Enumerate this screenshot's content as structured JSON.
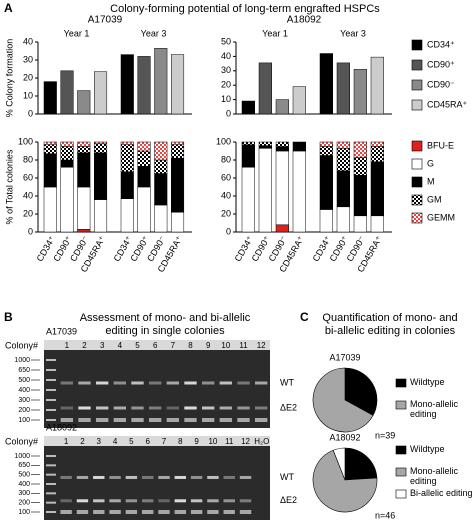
{
  "panel_a": {
    "label": "A",
    "title": "Colony-forming potential of long-term engrafted HSPCs"
  },
  "panel_b": {
    "label": "B",
    "title": [
      "Assessment of mono- and bi-allelic",
      "editing in single colonies"
    ],
    "row_label": "Colony#",
    "gels": [
      {
        "donor": "A17039",
        "lanes": [
          "1",
          "2",
          "3",
          "4",
          "5",
          "6",
          "7",
          "8",
          "9",
          "10",
          "11",
          "12"
        ],
        "ladder": [
          "1000",
          "650",
          "500",
          "400",
          "300",
          "200",
          "100"
        ],
        "bands": [
          "WT",
          "ΔE2"
        ]
      },
      {
        "donor": "A18092",
        "lanes": [
          "1",
          "2",
          "3",
          "4",
          "5",
          "6",
          "7",
          "8",
          "9",
          "10",
          "11",
          "12",
          "H₂O"
        ],
        "ladder": [
          "1000",
          "650",
          "500",
          "400",
          "300",
          "200",
          "100"
        ],
        "bands": [
          "WT",
          "ΔE2"
        ]
      }
    ]
  },
  "panel_c": {
    "label": "C",
    "title": [
      "Quantification of mono- and",
      "bi-allelic editing in colonies"
    ]
  },
  "chart_data": [
    {
      "type": "bar",
      "title": "A17039",
      "ylabel": "% Colony formation",
      "categories": [
        "Year 1",
        "Year 3"
      ],
      "series": [
        {
          "name": "CD34⁺",
          "color": "#000000",
          "values": [
            18,
            33
          ]
        },
        {
          "name": "CD90⁺",
          "color": "#555555",
          "values": [
            24,
            32
          ]
        },
        {
          "name": "CD90⁻",
          "color": "#8a8a8a",
          "values": [
            13,
            36.5
          ]
        },
        {
          "name": "CD45RA⁺",
          "color": "#cccccc",
          "values": [
            23.5,
            33
          ]
        }
      ],
      "ylim": [
        0,
        40
      ],
      "yticks": [
        0,
        10,
        20,
        30,
        40
      ],
      "legend": false
    },
    {
      "type": "stacked_bar",
      "ylabel": "% of Total colonies",
      "categories": [
        "CD34⁺",
        "CD90⁺",
        "CD90⁻",
        "CD45RA⁺",
        "CD34⁺",
        "CD90⁺",
        "CD90⁻",
        "CD45RA⁺"
      ],
      "series": [
        {
          "name": "BFU-E",
          "color": "#e0201b",
          "values": [
            0,
            0,
            3,
            0,
            0,
            0,
            0,
            0
          ]
        },
        {
          "name": "G",
          "color": "#ffffff",
          "values": [
            50,
            72,
            47,
            36,
            37,
            50,
            30,
            22
          ]
        },
        {
          "name": "M",
          "color": "#000000",
          "values": [
            37,
            8,
            38,
            52,
            30,
            23,
            35,
            60
          ]
        },
        {
          "name": "GM",
          "color": "#000000",
          "pattern": "checker",
          "values": [
            10,
            15,
            7,
            10,
            30,
            17,
            15,
            15
          ]
        },
        {
          "name": "GEMM",
          "color": "#e8463f",
          "pattern": "checker",
          "values": [
            3,
            5,
            5,
            2,
            3,
            10,
            20,
            3
          ]
        }
      ],
      "ylim": [
        0,
        100
      ],
      "yticks": [
        0,
        20,
        40,
        60,
        80,
        100
      ],
      "legend": false
    },
    {
      "type": "bar",
      "title": "A18092",
      "categories": [
        "Year 1",
        "Year 3"
      ],
      "series": [
        {
          "name": "CD34⁺",
          "color": "#000000",
          "values": [
            9,
            42
          ]
        },
        {
          "name": "CD90⁺",
          "color": "#555555",
          "values": [
            35.5,
            35.5
          ]
        },
        {
          "name": "CD90⁻",
          "color": "#8a8a8a",
          "values": [
            10,
            31
          ]
        },
        {
          "name": "CD45RA⁺",
          "color": "#cccccc",
          "values": [
            19,
            39.5
          ]
        }
      ],
      "ylim": [
        0,
        50
      ],
      "yticks": [
        0,
        10,
        20,
        30,
        40,
        50
      ],
      "legend": true
    },
    {
      "type": "stacked_bar",
      "categories": [
        "CD34⁺",
        "CD90⁺",
        "CD90⁻",
        "CD45RA⁺",
        "CD34⁺",
        "CD90⁺",
        "CD90⁻",
        "CD45RA⁺"
      ],
      "series": [
        {
          "name": "BFU-E",
          "color": "#e0201b",
          "values": [
            0,
            0,
            8,
            0,
            0,
            0,
            0,
            0
          ]
        },
        {
          "name": "G",
          "color": "#ffffff",
          "values": [
            72,
            93,
            82,
            90,
            25,
            28,
            18,
            18
          ]
        },
        {
          "name": "M",
          "color": "#000000",
          "values": [
            25,
            3,
            5,
            10,
            60,
            40,
            45,
            60
          ]
        },
        {
          "name": "GM",
          "color": "#000000",
          "pattern": "checker",
          "values": [
            3,
            4,
            5,
            0,
            10,
            25,
            20,
            17
          ]
        },
        {
          "name": "GEMM",
          "color": "#e8463f",
          "pattern": "checker",
          "values": [
            0,
            0,
            0,
            0,
            5,
            7,
            17,
            5
          ]
        }
      ],
      "ylim": [
        0,
        100
      ],
      "yticks": [
        0,
        20,
        40,
        60,
        80,
        100
      ],
      "legend": true
    },
    {
      "type": "pie",
      "title": "A17039",
      "note": "n=39",
      "categories": [
        "Wildtype",
        "Mono-allelic editing"
      ],
      "values": [
        33,
        67
      ],
      "colors": [
        "#000000",
        "#a6a6a6"
      ]
    },
    {
      "type": "pie",
      "title": "A18092",
      "note": "n=46",
      "categories": [
        "Wildtype",
        "Mono-allelic editing",
        "Bi-allelic editing"
      ],
      "values": [
        24,
        70,
        6
      ],
      "colors": [
        "#000000",
        "#a6a6a6",
        "#ffffff"
      ]
    }
  ]
}
